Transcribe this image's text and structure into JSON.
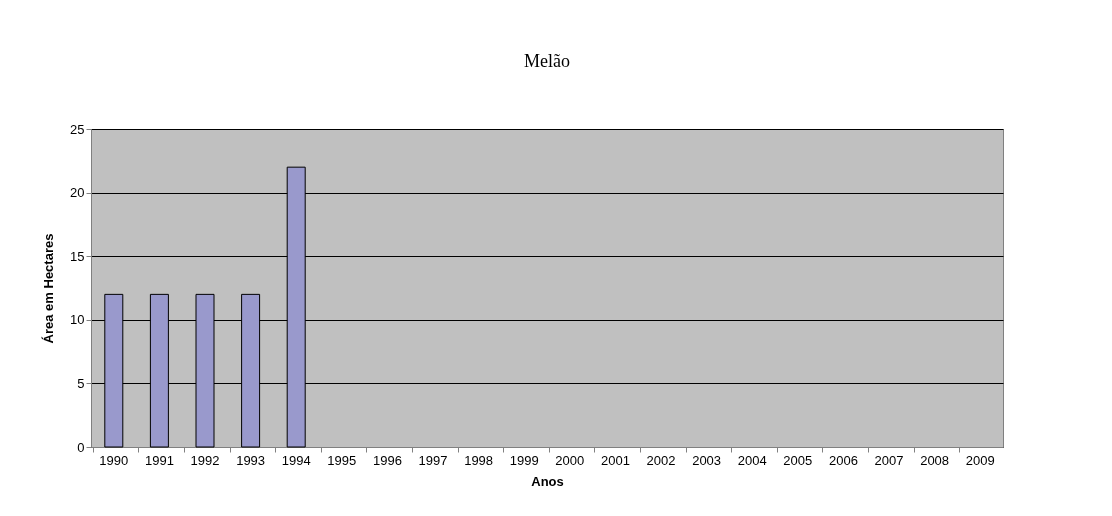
{
  "chart_data": {
    "type": "bar",
    "title": "Melão",
    "xlabel": "Anos",
    "ylabel": "Área em Hectares",
    "categories": [
      "1990",
      "1991",
      "1992",
      "1993",
      "1994",
      "1995",
      "1996",
      "1997",
      "1998",
      "1999",
      "2000",
      "2001",
      "2002",
      "2003",
      "2004",
      "2005",
      "2006",
      "2007",
      "2008",
      "2009"
    ],
    "series": [
      {
        "color": "#9999cc",
        "values": [
          12,
          12,
          12,
          12,
          22,
          null,
          null,
          null,
          null,
          null,
          null,
          null,
          null,
          null,
          null,
          null,
          null,
          null,
          null,
          null
        ]
      }
    ],
    "ylim": [
      0,
      25
    ],
    "yticks": [
      0,
      5,
      10,
      15,
      20,
      25
    ],
    "grid": "y",
    "legend": false
  }
}
